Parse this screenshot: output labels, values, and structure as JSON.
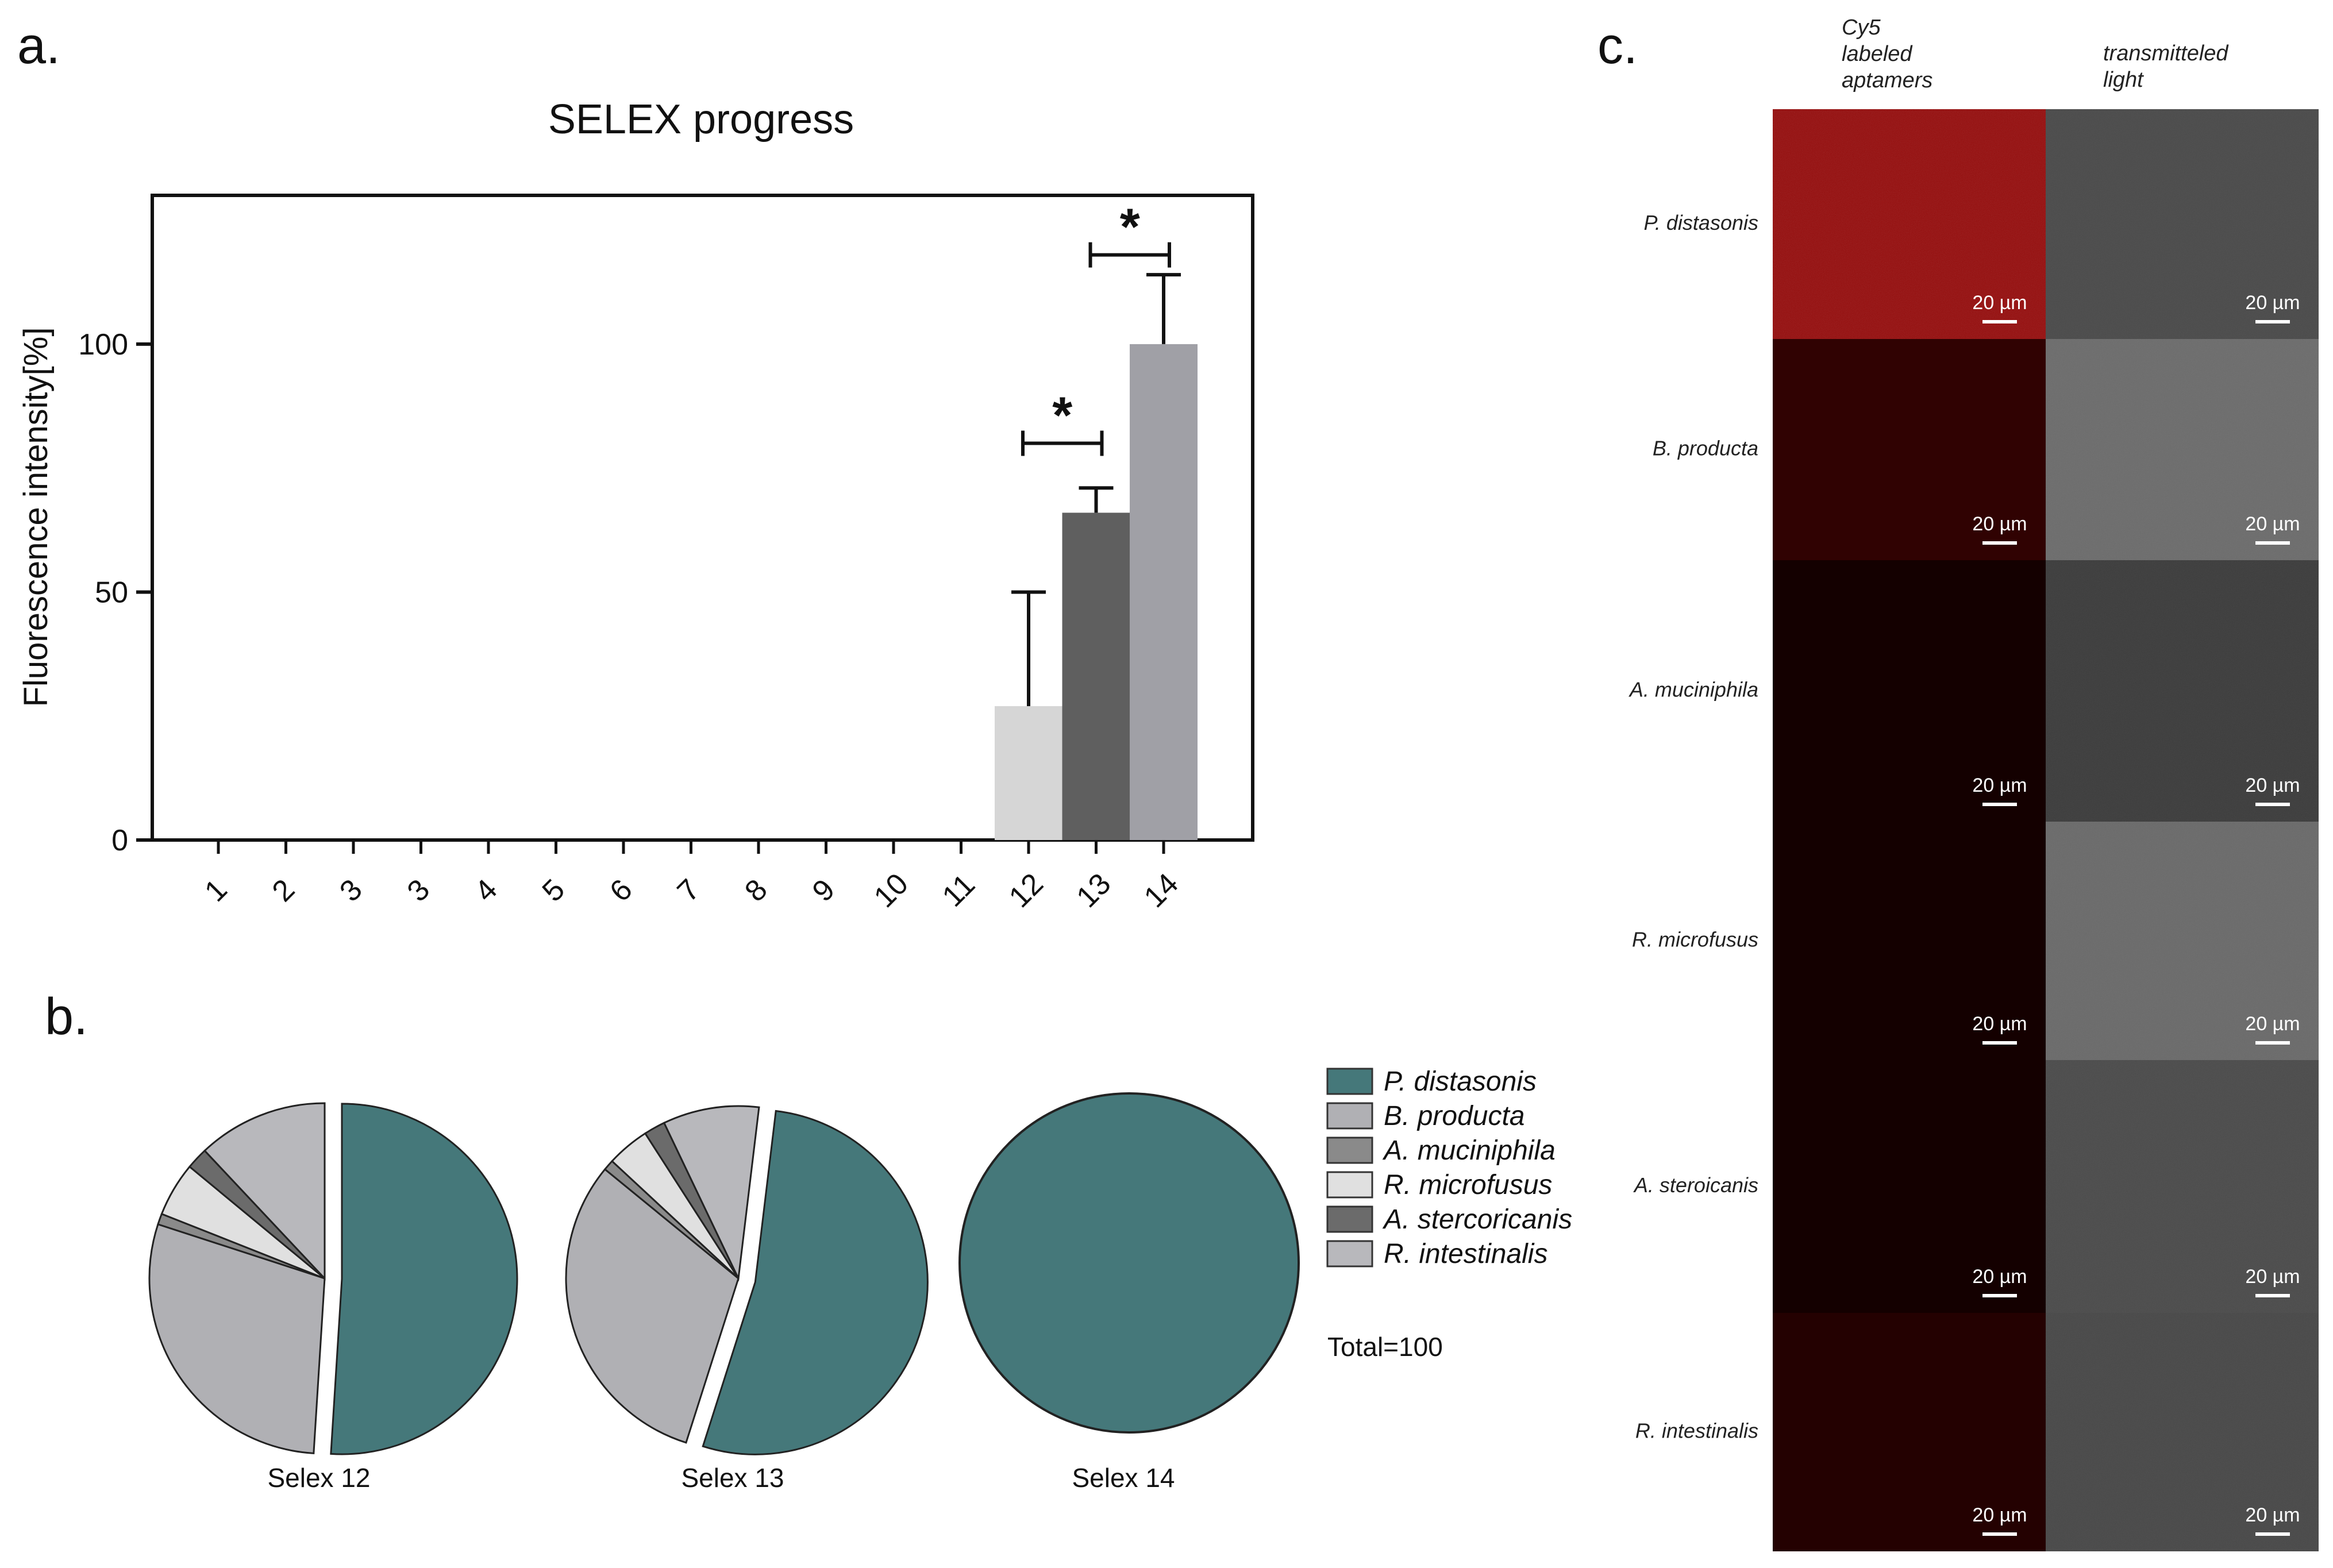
{
  "panels": {
    "a": "a.",
    "b": "b.",
    "c": "c."
  },
  "chart_data": [
    {
      "type": "bar",
      "title": "SELEX progress",
      "xlabel": "",
      "ylabel": "Fluorescence intensity[%]",
      "ylim": [
        0,
        130
      ],
      "yticks": [
        0,
        50,
        100
      ],
      "categories": [
        "1",
        "2",
        "3",
        "3",
        "4",
        "5",
        "6",
        "7",
        "8",
        "9",
        "10",
        "11",
        "12",
        "13",
        "14"
      ],
      "values": [
        0,
        0,
        0,
        0,
        0,
        0,
        0,
        0,
        0,
        0,
        0,
        0,
        27,
        66,
        100
      ],
      "error_upper": [
        0,
        0,
        0,
        0,
        0,
        0,
        0,
        0,
        0,
        0,
        0,
        0,
        50,
        71,
        114
      ],
      "bar_colors": {
        "12": "#d6d6d6",
        "13": "#5f5f5f",
        "14": "#a0a0a6"
      },
      "significance": [
        {
          "from": "12",
          "to": "13",
          "label": "*"
        },
        {
          "from": "13",
          "to": "14",
          "label": "*"
        }
      ]
    },
    {
      "type": "pie",
      "legend": [
        {
          "name": "P. distasonis",
          "color": "#45787a"
        },
        {
          "name": "B. producta",
          "color": "#b0b0b4"
        },
        {
          "name": "A. muciniphila",
          "color": "#8a8a8a"
        },
        {
          "name": "R. microfusus",
          "color": "#e0e0e0"
        },
        {
          "name": "A. stercoricanis",
          "color": "#6b6b6b"
        },
        {
          "name": "R. intestinalis",
          "color": "#b8b8bc"
        }
      ],
      "total_label": "Total=100",
      "pies": [
        {
          "label": "Selex 12",
          "slices": [
            {
              "name": "P. distasonis",
              "value": 51
            },
            {
              "name": "B. producta",
              "value": 29
            },
            {
              "name": "A. muciniphila",
              "value": 1
            },
            {
              "name": "R. microfusus",
              "value": 5
            },
            {
              "name": "A. stercoricanis",
              "value": 2
            },
            {
              "name": "R. intestinalis",
              "value": 12
            }
          ]
        },
        {
          "label": "Selex 13",
          "slices": [
            {
              "name": "P. distasonis",
              "value": 53
            },
            {
              "name": "B. producta",
              "value": 31
            },
            {
              "name": "A. muciniphila",
              "value": 1
            },
            {
              "name": "R. microfusus",
              "value": 4
            },
            {
              "name": "A. stercoricanis",
              "value": 2
            },
            {
              "name": "R. intestinalis",
              "value": 9
            }
          ]
        },
        {
          "label": "Selex 14",
          "slices": [
            {
              "name": "P. distasonis",
              "value": 100
            }
          ]
        }
      ]
    }
  ],
  "microscopy": {
    "columns": [
      "Cy5\nlabeled\naptamers",
      "transmitteled\nlight"
    ],
    "rows": [
      "P. distasonis",
      "B. producta",
      "A. muciniphila",
      "R. microfusus",
      "A. steroicanis",
      "R. intestinalis"
    ],
    "red_intensity": [
      0.55,
      0.12,
      0.0,
      0.0,
      0.0,
      0.07
    ],
    "gray_shade": [
      "#4a4a4a",
      "#6c6c6c",
      "#3c3c3c",
      "#6a6a6a",
      "#4b4b4b",
      "#484848"
    ],
    "scale_bar": "20 µm"
  }
}
